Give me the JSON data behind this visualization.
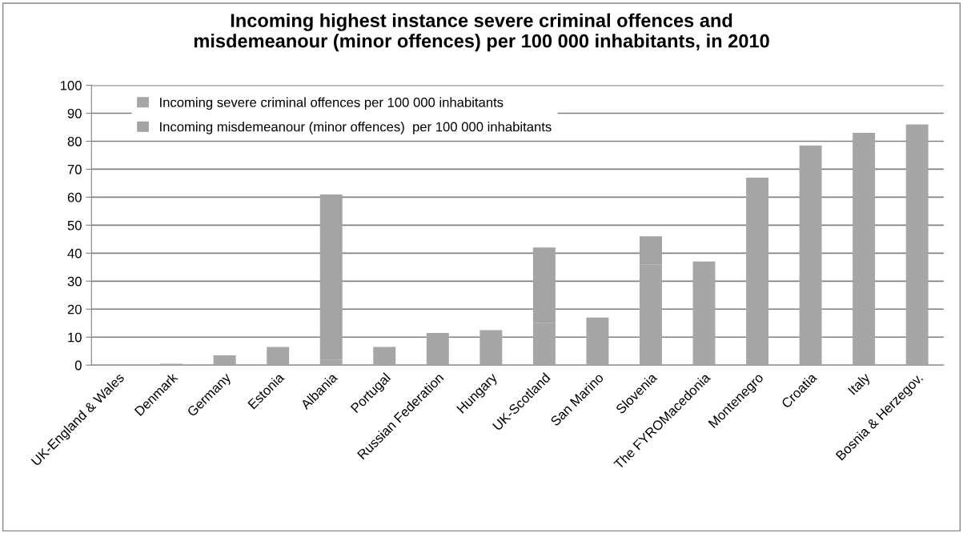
{
  "chart_data": {
    "type": "bar",
    "stacked": true,
    "title": "Incoming highest instance severe criminal offences and\nmisdemeanour (minor offences) per 100 000 inhabitants, in 2010",
    "categories": [
      "UK-England & Wales",
      "Denmark",
      "Germany",
      "Estonia",
      "Albania",
      "Portugal",
      "Russian Federation",
      "Hungary",
      "UK-Scotland",
      "San Marino",
      "Slovenia",
      "The FYROMacedonia",
      "Montenegro",
      "Croatia",
      "Italy",
      "Bosnia & Herzegov."
    ],
    "series": [
      {
        "name": "Incoming severe criminal offences per 100 000 inhabitants",
        "color": "#a6a6a6",
        "values": [
          0,
          0.5,
          3.5,
          6.5,
          2,
          6.5,
          11.5,
          12.5,
          15,
          17,
          36,
          37,
          67,
          78.5,
          83,
          86
        ]
      },
      {
        "name": "Incoming misdemeanour (minor offences)  per 100 000 inhabitants",
        "color": "#a3a3a3",
        "values": [
          0,
          0,
          0,
          0,
          59,
          0,
          0,
          0,
          27,
          0,
          10,
          0,
          0,
          0,
          0,
          0
        ]
      }
    ],
    "ylim": [
      0,
      100
    ],
    "yticks": [
      0,
      10,
      20,
      30,
      40,
      50,
      60,
      70,
      80,
      90,
      100
    ],
    "grid": "y",
    "legend": "top left"
  }
}
